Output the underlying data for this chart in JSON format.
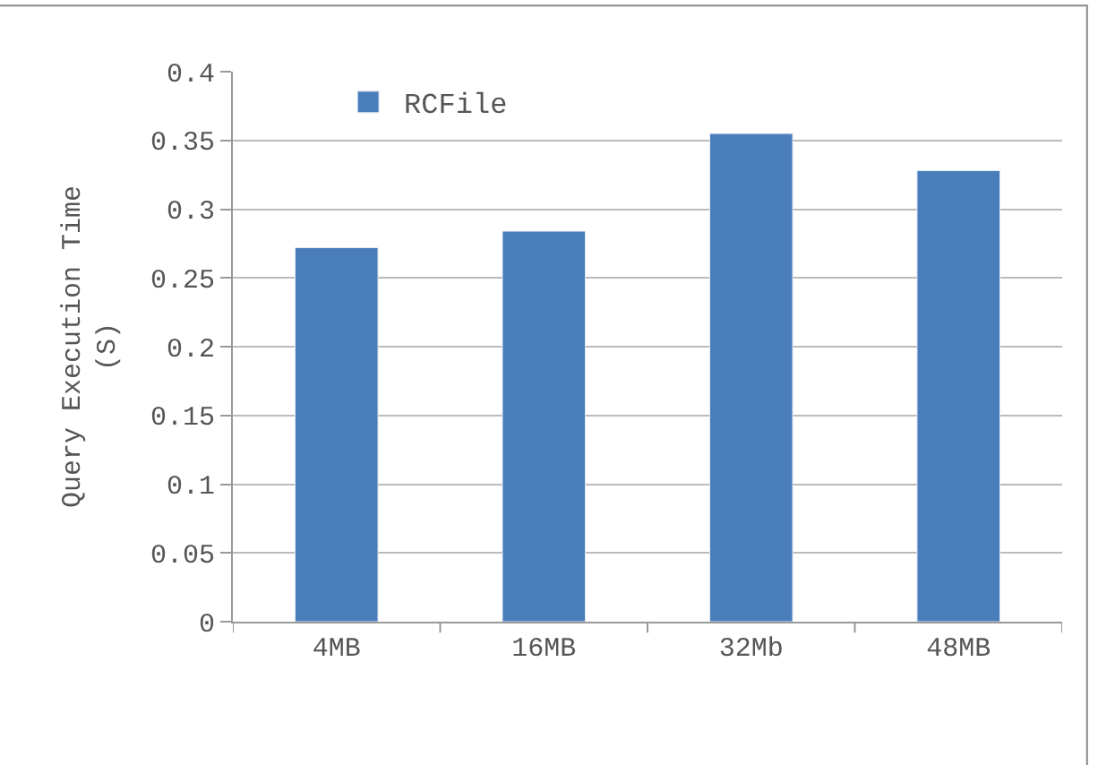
{
  "chart_data": {
    "type": "bar",
    "ylabel": "Query Execution Time\n(S)",
    "categories": [
      "4MB",
      "16MB",
      "32Mb",
      "48MB"
    ],
    "series": [
      {
        "name": "RCFile",
        "color": "#4a7ebb",
        "values": [
          0.272,
          0.284,
          0.355,
          0.328
        ]
      }
    ],
    "ylim": [
      0,
      0.4
    ],
    "yticks": [
      0,
      0.05,
      0.1,
      0.15,
      0.2,
      0.25,
      0.3,
      0.35,
      0.4
    ],
    "grid": "y",
    "legend": "top left"
  }
}
